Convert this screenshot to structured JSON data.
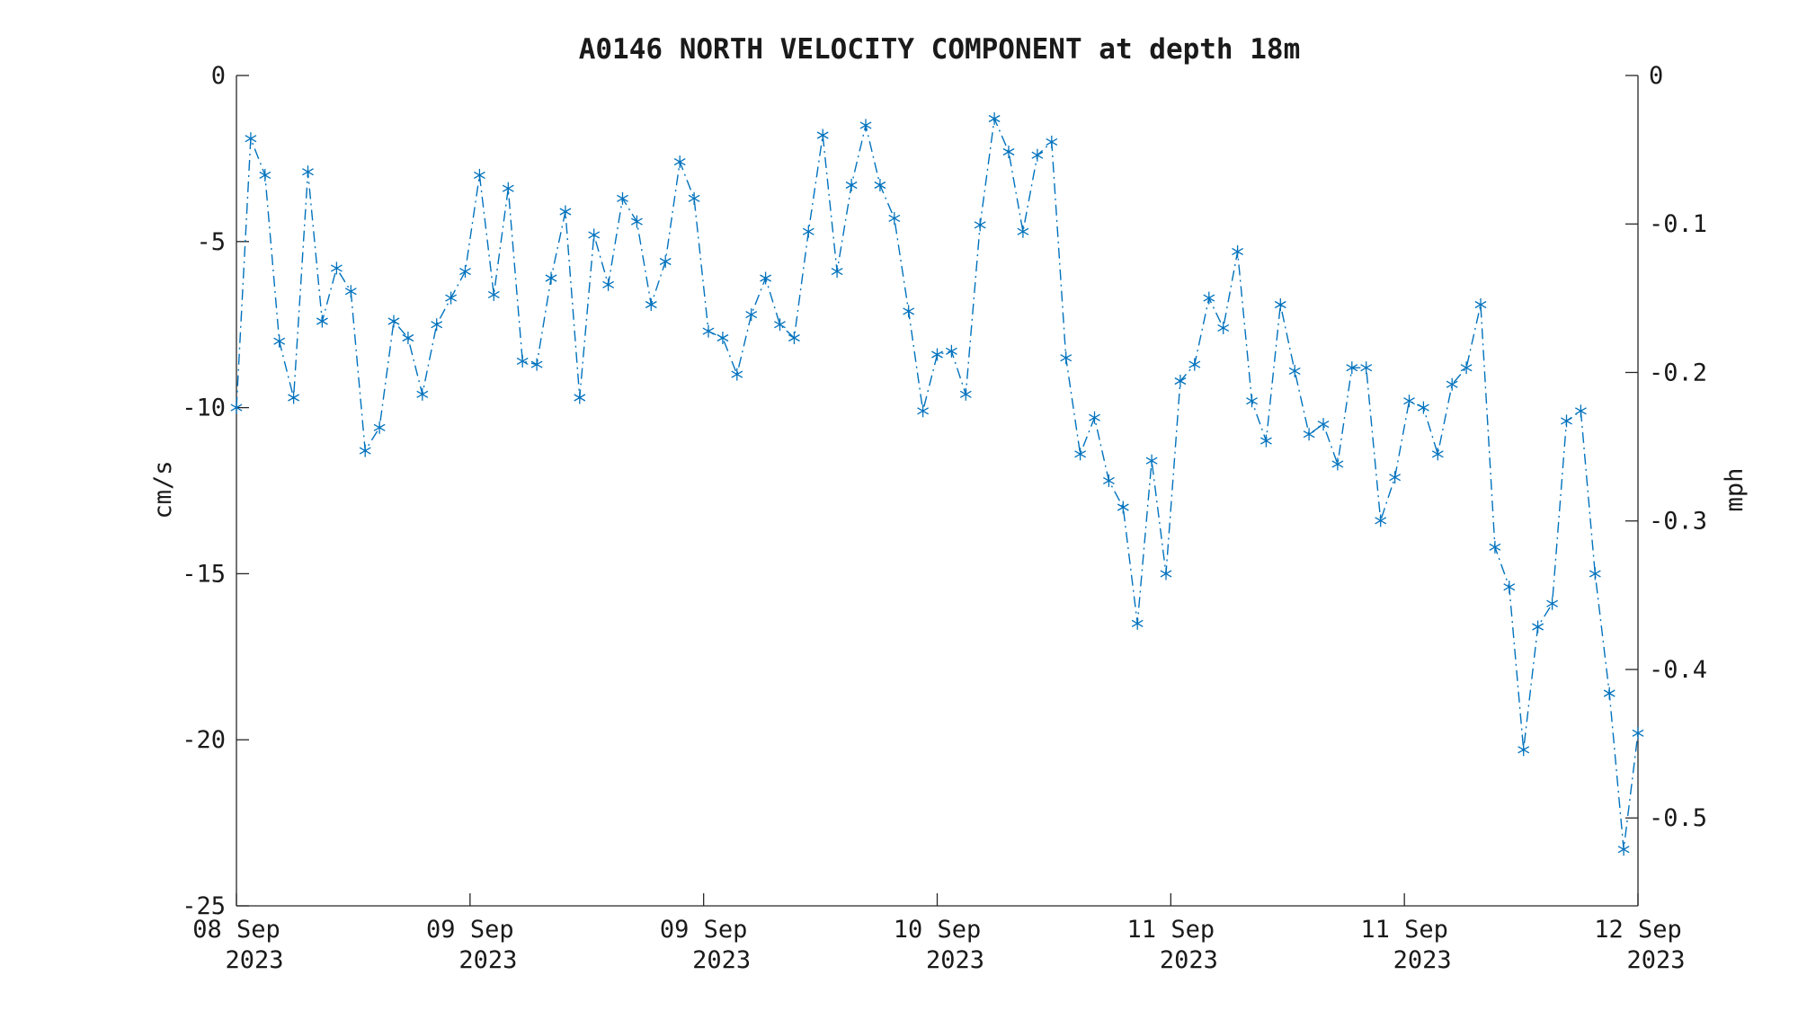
{
  "chart_data": {
    "type": "line",
    "title": "A0146 NORTH VELOCITY COMPONENT at depth 18m",
    "ylabel": "cm/s",
    "y2label": "mph",
    "ylim": [
      -25,
      0
    ],
    "y2lim": [
      -0.5592,
      0
    ],
    "yticks": [
      0,
      -5,
      -10,
      -15,
      -20,
      -25
    ],
    "y2ticks": [
      0,
      -0.1,
      -0.2,
      -0.3,
      -0.4,
      -0.5
    ],
    "y2tick_labels": [
      "0",
      "-0.1",
      "-0.2",
      "-0.3",
      "-0.4",
      "-0.5"
    ],
    "xlim": [
      0,
      6
    ],
    "xticks": [
      {
        "day": "08 Sep",
        "year": "2023"
      },
      {
        "day": "09 Sep",
        "year": "2023"
      },
      {
        "day": "09 Sep",
        "year": "2023"
      },
      {
        "day": "10 Sep",
        "year": "2023"
      },
      {
        "day": "11 Sep",
        "year": "2023"
      },
      {
        "day": "11 Sep",
        "year": "2023"
      },
      {
        "day": "12 Sep",
        "year": "2023"
      }
    ],
    "line_style": "dash-dot",
    "marker": "asterisk",
    "color": "#0072BD",
    "grid": false,
    "series": [
      {
        "values": [
          -10.0,
          -1.9,
          -3.0,
          -8.0,
          -9.7,
          -2.9,
          -7.4,
          -5.8,
          -6.5,
          -11.3,
          -10.6,
          -7.4,
          -7.9,
          -9.6,
          -7.5,
          -6.7,
          -5.9,
          -3.0,
          -6.6,
          -3.4,
          -8.6,
          -8.7,
          -6.1,
          -4.1,
          -9.7,
          -4.8,
          -6.3,
          -3.7,
          -4.4,
          -6.9,
          -5.6,
          -2.6,
          -3.7,
          -7.7,
          -7.9,
          -9.0,
          -7.2,
          -6.1,
          -7.5,
          -7.9,
          -4.7,
          -1.8,
          -5.9,
          -3.3,
          -1.5,
          -3.3,
          -4.3,
          -7.1,
          -10.1,
          -8.4,
          -8.3,
          -9.6,
          -4.5,
          -1.3,
          -2.3,
          -4.7,
          -2.4,
          -2.0,
          -8.5,
          -11.4,
          -10.3,
          -12.2,
          -13.0,
          -16.5,
          -11.6,
          -15.0,
          -9.2,
          -8.7,
          -6.7,
          -7.6,
          -5.3,
          -9.8,
          -11.0,
          -6.9,
          -8.9,
          -10.8,
          -10.5,
          -11.7,
          -8.8,
          -8.8,
          -13.4,
          -12.1,
          -9.8,
          -10.0,
          -11.4,
          -9.3,
          -8.8,
          -6.9,
          -14.2,
          -15.4,
          -20.3,
          -16.6,
          -15.9,
          -10.4,
          -10.1,
          -15.0,
          -18.6,
          -23.3,
          -19.8
        ]
      }
    ]
  }
}
